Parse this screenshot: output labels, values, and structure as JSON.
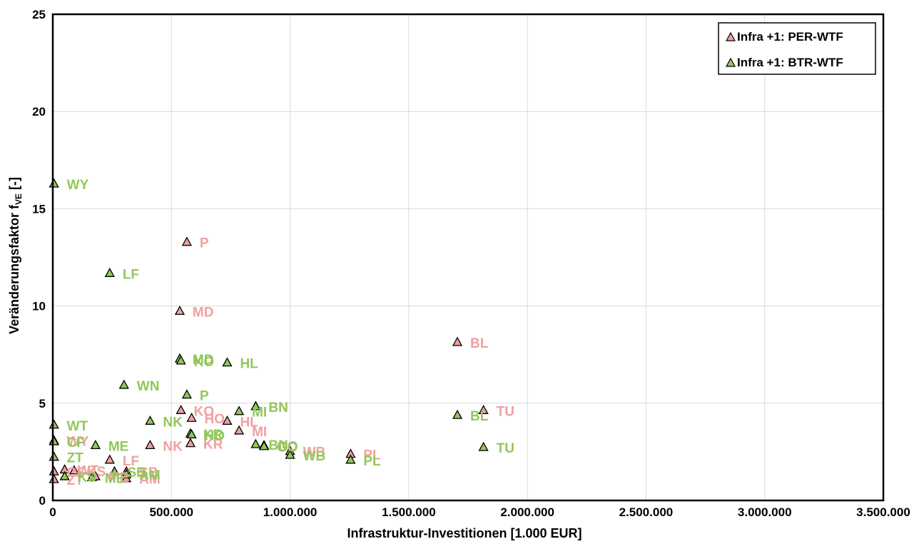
{
  "chart_data": {
    "type": "scatter",
    "xlabel": "Infrastruktur-Investitionen [1.000 EUR]",
    "ylabel": "Veränderungsfaktor f",
    "ylabel_sub": "VE",
    "ylabel_suffix": " [-]",
    "xlim": [
      0,
      3500000
    ],
    "ylim": [
      0,
      25
    ],
    "x_ticks": [
      0,
      500000,
      1000000,
      1500000,
      2000000,
      2500000,
      3000000,
      3500000
    ],
    "x_tick_labels": [
      "0",
      "500.000",
      "1.000.000",
      "1.500.000",
      "2.000.000",
      "2.500.000",
      "3.000.000",
      "3.500.000"
    ],
    "y_ticks": [
      0,
      5,
      10,
      15,
      20,
      25
    ],
    "y_tick_labels": [
      "0",
      "5",
      "10",
      "15",
      "20",
      "25"
    ],
    "grid": true,
    "legend_position": "top-right",
    "series": [
      {
        "name": "Infra +1: PER-WTF",
        "color": "#f0a0a0",
        "label_color": "#f0a0a0",
        "points": [
          {
            "label": "P",
            "x": 565000,
            "y": 13.3
          },
          {
            "label": "MD",
            "x": 535000,
            "y": 9.75
          },
          {
            "label": "BL",
            "x": 1705000,
            "y": 8.15
          },
          {
            "label": "TU",
            "x": 1815000,
            "y": 4.65
          },
          {
            "label": "BN",
            "x": 855000,
            "y": 4.85
          },
          {
            "label": "KO",
            "x": 540000,
            "y": 4.65
          },
          {
            "label": "HO",
            "x": 585000,
            "y": 4.25
          },
          {
            "label": "HL",
            "x": 735000,
            "y": 4.1
          },
          {
            "label": "MI",
            "x": 785000,
            "y": 3.6
          },
          {
            "label": "WY",
            "x": 5000,
            "y": 3.1
          },
          {
            "label": "NK",
            "x": 410000,
            "y": 2.85
          },
          {
            "label": "KR",
            "x": 580000,
            "y": 2.95
          },
          {
            "label": "GO",
            "x": 890000,
            "y": 2.85
          },
          {
            "label": "WB",
            "x": 1000000,
            "y": 2.55
          },
          {
            "label": "PL",
            "x": 1255000,
            "y": 2.4
          },
          {
            "label": "LF",
            "x": 240000,
            "y": 2.1
          },
          {
            "label": "CF",
            "x": 5000,
            "y": 1.5
          },
          {
            "label": "WT",
            "x": 50000,
            "y": 1.6
          },
          {
            "label": "KS",
            "x": 90000,
            "y": 1.55
          },
          {
            "label": "SB",
            "x": 310000,
            "y": 1.5
          },
          {
            "label": "ME",
            "x": 180000,
            "y": 1.25
          },
          {
            "label": "AM",
            "x": 310000,
            "y": 1.15
          },
          {
            "label": "ZT",
            "x": 5000,
            "y": 1.1
          }
        ]
      },
      {
        "name": "Infra +1: BTR-WTF",
        "color": "#92c85a",
        "label_color": "#92c85a",
        "points": [
          {
            "label": "WY",
            "x": 5000,
            "y": 16.3
          },
          {
            "label": "LF",
            "x": 240000,
            "y": 11.7
          },
          {
            "label": "MD",
            "x": 535000,
            "y": 7.3
          },
          {
            "label": "KO",
            "x": 540000,
            "y": 7.2
          },
          {
            "label": "HL",
            "x": 735000,
            "y": 7.1
          },
          {
            "label": "WN",
            "x": 300000,
            "y": 5.95
          },
          {
            "label": "P",
            "x": 565000,
            "y": 5.45
          },
          {
            "label": "MI",
            "x": 785000,
            "y": 4.6
          },
          {
            "label": "BN",
            "x": 855000,
            "y": 4.85
          },
          {
            "label": "BL",
            "x": 1705000,
            "y": 4.4
          },
          {
            "label": "NK",
            "x": 410000,
            "y": 4.1
          },
          {
            "label": "WT",
            "x": 5000,
            "y": 3.9
          },
          {
            "label": "KR",
            "x": 580000,
            "y": 3.45
          },
          {
            "label": "HO",
            "x": 585000,
            "y": 3.4
          },
          {
            "label": "CF",
            "x": 5000,
            "y": 3.05
          },
          {
            "label": "ME",
            "x": 180000,
            "y": 2.85
          },
          {
            "label": "BN",
            "x": 855000,
            "y": 2.9
          },
          {
            "label": "GO",
            "x": 890000,
            "y": 2.8
          },
          {
            "label": "TU",
            "x": 1815000,
            "y": 2.75
          },
          {
            "label": "WB",
            "x": 1000000,
            "y": 2.35
          },
          {
            "label": "PL",
            "x": 1255000,
            "y": 2.1
          },
          {
            "label": "ZT",
            "x": 5000,
            "y": 2.25
          },
          {
            "label": "SB",
            "x": 260000,
            "y": 1.5
          },
          {
            "label": "AM",
            "x": 310000,
            "y": 1.35
          },
          {
            "label": "KS",
            "x": 50000,
            "y": 1.25
          },
          {
            "label": "ME",
            "x": 165000,
            "y": 1.2
          }
        ]
      }
    ]
  }
}
